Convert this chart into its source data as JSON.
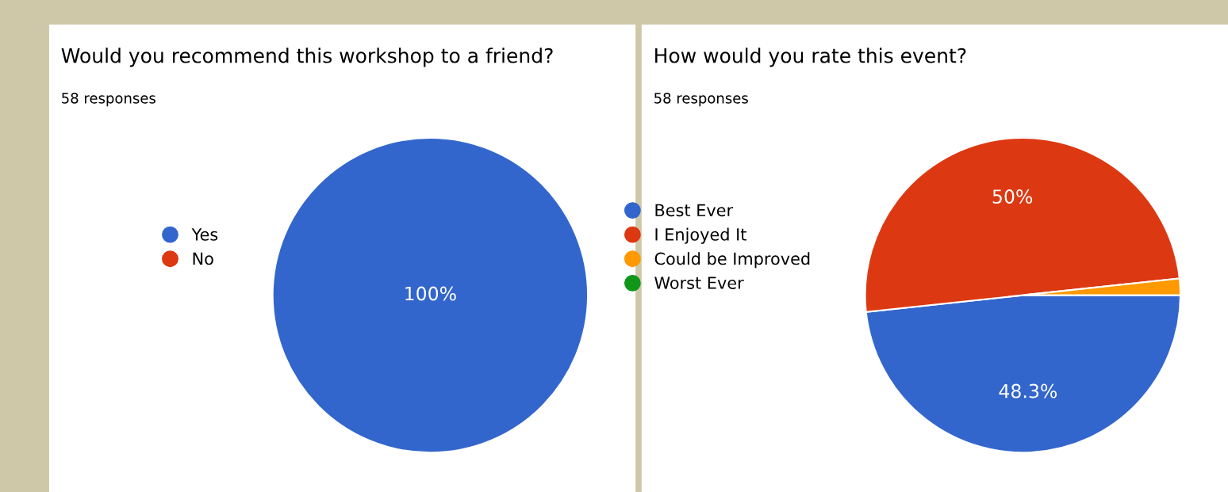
{
  "chart_data": [
    {
      "type": "pie",
      "title": "Would you recommend this workshop to a friend?",
      "subtitle": "58 responses",
      "categories": [
        "Yes",
        "No"
      ],
      "values": [
        100,
        0
      ],
      "colors": [
        "#3366cc",
        "#dc3912"
      ],
      "value_labels": [
        "100%",
        null
      ],
      "legend": "left"
    },
    {
      "type": "pie",
      "title": "How would you rate this event?",
      "subtitle": "58 responses",
      "categories": [
        "Best Ever",
        "I Enjoyed It",
        "Could be Improved",
        "Worst Ever"
      ],
      "values": [
        48.3,
        50,
        1.7,
        0
      ],
      "colors": [
        "#3366cc",
        "#dc3912",
        "#ff9900",
        "#109618"
      ],
      "value_labels": [
        "48.3%",
        "50%",
        null,
        null
      ],
      "legend": "left"
    }
  ]
}
